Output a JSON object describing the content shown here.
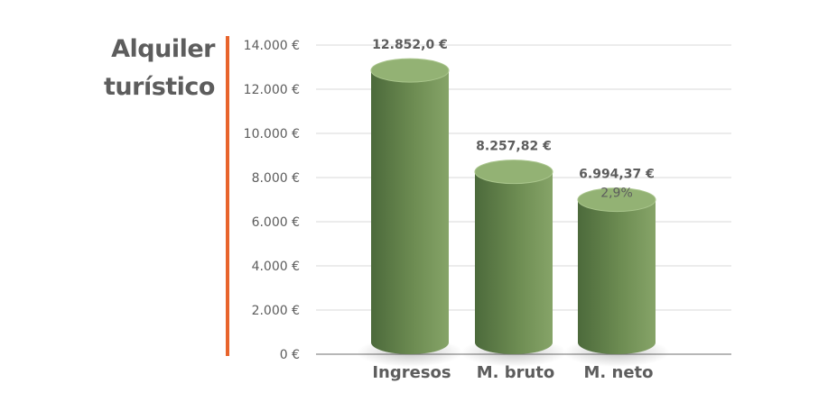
{
  "chart_data": {
    "type": "bar",
    "title_lines": [
      "Alquiler",
      "turístico"
    ],
    "categories": [
      "Ingresos",
      "M. bruto",
      "M. neto"
    ],
    "values": [
      12852.0,
      8257.82,
      6994.37
    ],
    "value_labels": [
      "12.852,0 €",
      "8.257,82 €",
      "6.994,37 €"
    ],
    "extra_labels": [
      "",
      "",
      "2,9%"
    ],
    "ylim": [
      0,
      14000
    ],
    "yticks": [
      0,
      2000,
      4000,
      6000,
      8000,
      10000,
      12000,
      14000
    ],
    "ytick_labels": [
      "0 €",
      "2.000 €",
      "4.000 €",
      "6.000 €",
      "8.000 €",
      "10.000 €",
      "12.000 €",
      "14.000 €"
    ],
    "grid": true,
    "colors": {
      "bar_dark": "#4f6d3e",
      "bar_light": "#7f9d62",
      "bar_top": "#93b274",
      "accent": "#e8642c",
      "grid": "#d9d9d9",
      "text": "#5d5d5d"
    }
  }
}
